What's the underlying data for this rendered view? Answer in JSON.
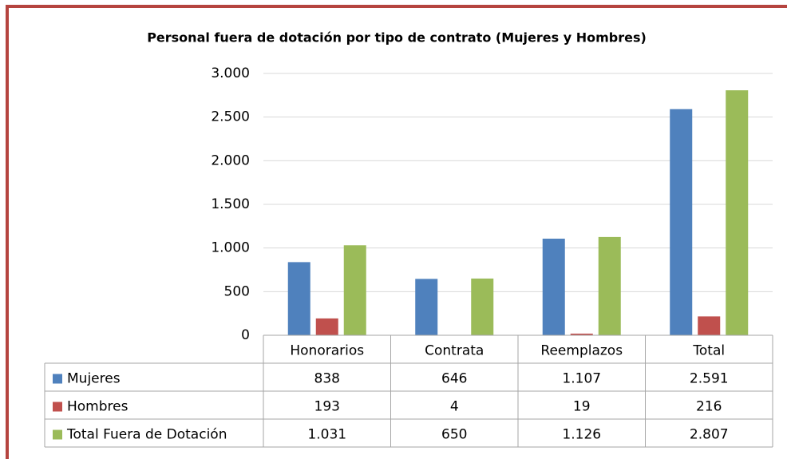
{
  "chart_data": {
    "type": "bar",
    "title": "Personal fuera de dotación por tipo de contrato (Mujeres y Hombres)",
    "categories": [
      "Honorarios",
      "Contrata",
      "Reemplazos",
      "Total"
    ],
    "series": [
      {
        "name": "Mujeres",
        "color": "#4f81bd",
        "values": [
          838,
          646,
          1107,
          2591
        ],
        "value_labels": [
          "838",
          "646",
          "1.107",
          "2.591"
        ]
      },
      {
        "name": "Hombres",
        "color": "#c0504d",
        "values": [
          193,
          4,
          19,
          216
        ],
        "value_labels": [
          "193",
          "4",
          "19",
          "216"
        ]
      },
      {
        "name": "Total Fuera de Dotación",
        "color": "#9bbb59",
        "values": [
          1031,
          650,
          1126,
          2807
        ],
        "value_labels": [
          "1.031",
          "650",
          "1.126",
          "2.807"
        ]
      }
    ],
    "ylim": [
      0,
      3000
    ],
    "yticks": [
      0,
      500,
      {
        "value": 1000,
        "label": "1.000"
      },
      {
        "value": 1500,
        "label": "1.500"
      },
      {
        "value": 2000,
        "label": "2.000"
      },
      {
        "value": 2500,
        "label": "2.500"
      },
      {
        "value": 3000,
        "label": "3.000"
      }
    ],
    "grid": true
  }
}
